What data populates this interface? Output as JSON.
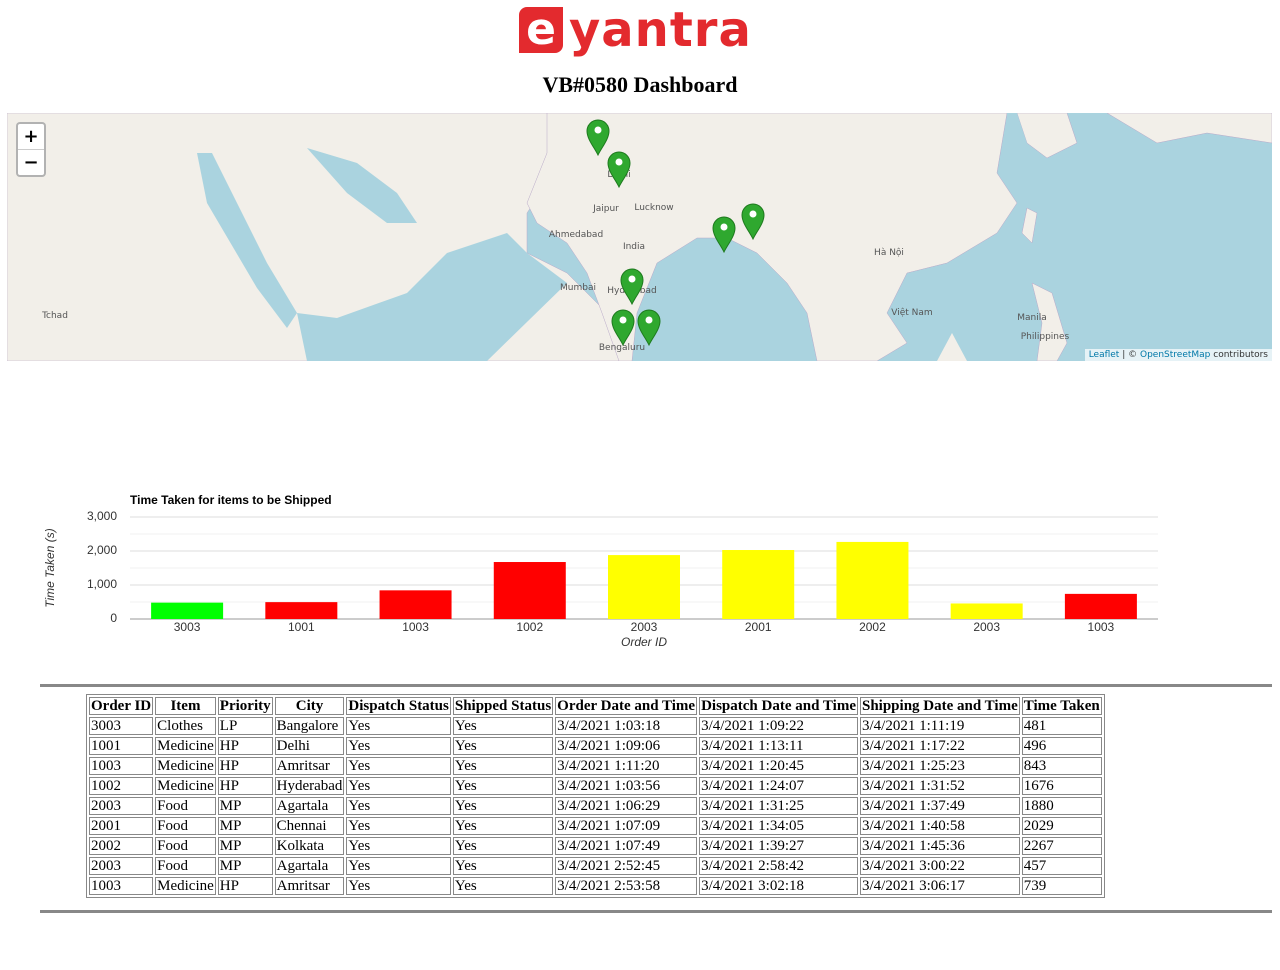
{
  "header": {
    "logo_mark": "e",
    "logo_text": "yantra",
    "title": "VB#0580 Dashboard"
  },
  "map": {
    "zoom_in": "+",
    "zoom_out": "−",
    "attribution": {
      "leaflet": "Leaflet",
      "separator": "| ©",
      "osm": "OpenStreetMap",
      "suffix": "contributors"
    },
    "labels": [
      "India",
      "Mumbai",
      "Hyderabad",
      "Bengaluru",
      "Delhi",
      "Ahmedabad",
      "Jaipur",
      "Lucknow",
      "Hà Nội",
      "Việt Nam",
      "Manila",
      "Philippines",
      "Tchad"
    ]
  },
  "chart_data": {
    "type": "bar",
    "title": "Time Taken for items to be Shipped",
    "x_label": "Order ID",
    "y_label": "Time Taken (s)",
    "categories": [
      "3003",
      "1001",
      "1003",
      "1002",
      "2003",
      "2001",
      "2002",
      "2003",
      "1003"
    ],
    "values": [
      481,
      496,
      843,
      1676,
      1880,
      2029,
      2267,
      457,
      739
    ],
    "colors": [
      "#00ff00",
      "#ff0000",
      "#ff0000",
      "#ff0000",
      "#ffff00",
      "#ffff00",
      "#ffff00",
      "#ffff00",
      "#ff0000"
    ],
    "ylim": [
      0,
      3000
    ],
    "yticks": [
      0,
      {
        "value": 1000,
        "label": "1,000"
      },
      {
        "value": 2000,
        "label": "2,000"
      },
      {
        "value": 3000,
        "label": "3,000"
      }
    ],
    "minor_yticks": [
      500,
      1500,
      2500
    ],
    "grid": true
  },
  "table": {
    "header": [
      "Order ID",
      "Item",
      "Priority",
      "City",
      "Dispatch Status",
      "Shipped Status",
      "Order Date and Time",
      "Dispatch Date and Time",
      "Shipping Date and Time",
      "Time Taken"
    ],
    "rows": [
      [
        "3003",
        "Clothes",
        "LP",
        "Bangalore",
        "Yes",
        "Yes",
        "3/4/2021 1:03:18",
        "3/4/2021 1:09:22",
        "3/4/2021 1:11:19",
        "481"
      ],
      [
        "1001",
        "Medicine",
        "HP",
        "Delhi",
        "Yes",
        "Yes",
        "3/4/2021 1:09:06",
        "3/4/2021 1:13:11",
        "3/4/2021 1:17:22",
        "496"
      ],
      [
        "1003",
        "Medicine",
        "HP",
        "Amritsar",
        "Yes",
        "Yes",
        "3/4/2021 1:11:20",
        "3/4/2021 1:20:45",
        "3/4/2021 1:25:23",
        "843"
      ],
      [
        "1002",
        "Medicine",
        "HP",
        "Hyderabad",
        "Yes",
        "Yes",
        "3/4/2021 1:03:56",
        "3/4/2021 1:24:07",
        "3/4/2021 1:31:52",
        "1676"
      ],
      [
        "2003",
        "Food",
        "MP",
        "Agartala",
        "Yes",
        "Yes",
        "3/4/2021 1:06:29",
        "3/4/2021 1:31:25",
        "3/4/2021 1:37:49",
        "1880"
      ],
      [
        "2001",
        "Food",
        "MP",
        "Chennai",
        "Yes",
        "Yes",
        "3/4/2021 1:07:09",
        "3/4/2021 1:34:05",
        "3/4/2021 1:40:58",
        "2029"
      ],
      [
        "2002",
        "Food",
        "MP",
        "Kolkata",
        "Yes",
        "Yes",
        "3/4/2021 1:07:49",
        "3/4/2021 1:39:27",
        "3/4/2021 1:45:36",
        "2267"
      ],
      [
        "2003",
        "Food",
        "MP",
        "Agartala",
        "Yes",
        "Yes",
        "3/4/2021 2:52:45",
        "3/4/2021 2:58:42",
        "3/4/2021 3:00:22",
        "457"
      ],
      [
        "1003",
        "Medicine",
        "HP",
        "Amritsar",
        "Yes",
        "Yes",
        "3/4/2021 2:53:58",
        "3/4/2021 3:02:18",
        "3/4/2021 3:06:17",
        "739"
      ]
    ]
  }
}
